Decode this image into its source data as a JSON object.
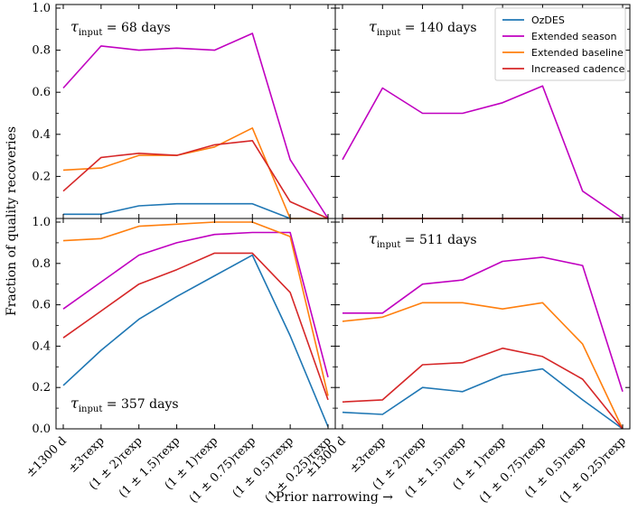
{
  "chart_data": {
    "type": "line",
    "xlabel": "Prior narrowing →",
    "ylabel": "Fraction of quality recoveries",
    "ylim": [
      0,
      1.0
    ],
    "categories": [
      "±1300 d",
      "±3τexp",
      "(1 ± 2)τexp",
      "(1 ± 1.5)τexp",
      "(1 ± 1)τexp",
      "(1 ± 0.75)τexp",
      "(1 ± 0.5)τexp",
      "(1 ± 0.25)τexp"
    ],
    "yticks": [
      "0.0",
      "0.2",
      "0.4",
      "0.6",
      "0.8",
      "1.0"
    ],
    "series_names": [
      "OzDES",
      "Extended season",
      "Extended baseline",
      "Increased cadence"
    ],
    "colors": {
      "OzDES": "#1f77b4",
      "Extended season": "#c000c0",
      "Extended baseline": "#ff7f0e",
      "Increased cadence": "#d62728"
    },
    "legend": {
      "placement": "top-right",
      "entries": [
        "OzDES",
        "Extended season",
        "Extended baseline",
        "Increased cadence"
      ]
    },
    "panels": [
      {
        "label": "τinput = 68 days",
        "tau": "68",
        "series": [
          {
            "name": "OzDES",
            "values": [
              0.02,
              0.02,
              0.06,
              0.07,
              0.07,
              0.07,
              0.0,
              0.0
            ]
          },
          {
            "name": "Extended season",
            "values": [
              0.62,
              0.82,
              0.8,
              0.81,
              0.8,
              0.88,
              0.28,
              0.0
            ]
          },
          {
            "name": "Extended baseline",
            "values": [
              0.23,
              0.24,
              0.3,
              0.3,
              0.34,
              0.43,
              0.0,
              0.0
            ]
          },
          {
            "name": "Increased cadence",
            "values": [
              0.13,
              0.29,
              0.31,
              0.3,
              0.35,
              0.37,
              0.08,
              0.0
            ]
          }
        ]
      },
      {
        "label": "τinput = 140 days",
        "tau": "140",
        "series": [
          {
            "name": "OzDES",
            "values": [
              0.0,
              0.0,
              0.0,
              0.0,
              0.0,
              0.0,
              0.0,
              0.0
            ]
          },
          {
            "name": "Extended season",
            "values": [
              0.28,
              0.62,
              0.5,
              0.5,
              0.55,
              0.63,
              0.13,
              0.0
            ]
          },
          {
            "name": "Extended baseline",
            "values": [
              0.0,
              0.0,
              0.0,
              0.0,
              0.0,
              0.0,
              0.0,
              0.0
            ]
          },
          {
            "name": "Increased cadence",
            "values": [
              0.0,
              0.0,
              0.0,
              0.0,
              0.0,
              0.0,
              0.0,
              0.0
            ]
          }
        ]
      },
      {
        "label": "τinput = 357 days",
        "tau": "357",
        "series": [
          {
            "name": "OzDES",
            "values": [
              0.21,
              0.38,
              0.53,
              0.64,
              0.74,
              0.84,
              0.45,
              0.01
            ]
          },
          {
            "name": "Extended season",
            "values": [
              0.58,
              0.71,
              0.84,
              0.9,
              0.94,
              0.95,
              0.95,
              0.25
            ]
          },
          {
            "name": "Extended baseline",
            "values": [
              0.91,
              0.92,
              0.98,
              0.99,
              1.0,
              1.0,
              0.93,
              0.16
            ]
          },
          {
            "name": "Increased cadence",
            "values": [
              0.44,
              0.57,
              0.7,
              0.77,
              0.85,
              0.85,
              0.66,
              0.14
            ]
          }
        ]
      },
      {
        "label": "τinput = 511 days",
        "tau": "511",
        "series": [
          {
            "name": "OzDES",
            "values": [
              0.08,
              0.07,
              0.2,
              0.18,
              0.26,
              0.29,
              0.14,
              0.0
            ]
          },
          {
            "name": "Extended season",
            "values": [
              0.56,
              0.56,
              0.7,
              0.72,
              0.81,
              0.83,
              0.79,
              0.18
            ]
          },
          {
            "name": "Extended baseline",
            "values": [
              0.52,
              0.54,
              0.61,
              0.61,
              0.58,
              0.61,
              0.41,
              0.0
            ]
          },
          {
            "name": "Increased cadence",
            "values": [
              0.13,
              0.14,
              0.31,
              0.32,
              0.39,
              0.35,
              0.24,
              0.0
            ]
          }
        ]
      }
    ]
  }
}
